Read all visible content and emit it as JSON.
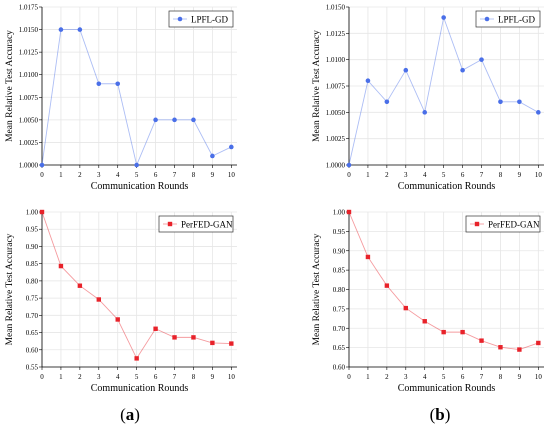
{
  "figure": {
    "captions": [
      "(a)",
      "(b)"
    ]
  },
  "chart_data": [
    {
      "type": "line",
      "marker": "circle",
      "x": [
        0,
        1,
        2,
        3,
        4,
        5,
        6,
        7,
        8,
        9,
        10
      ],
      "series": [
        {
          "name": "LPFL-GD",
          "values": [
            1.0,
            1.015,
            1.015,
            1.009,
            1.009,
            1.0,
            1.005,
            1.005,
            1.005,
            1.001,
            1.002
          ]
        }
      ],
      "xlabel": "Communication Rounds",
      "ylabel": "Mean Relative Test Accuracy",
      "xlim": [
        0,
        10.3
      ],
      "ylim": [
        1.0,
        1.0175
      ],
      "xticks": [
        "0",
        "1",
        "2",
        "3",
        "4",
        "5",
        "6",
        "7",
        "8",
        "9",
        "10"
      ],
      "yticks": [
        "1.0000",
        "1.0025",
        "1.0050",
        "1.0075",
        "1.0100",
        "1.0125",
        "1.0150",
        "1.0175"
      ],
      "grid": true,
      "legend_position": "top-right",
      "color": "#4a6fe8"
    },
    {
      "type": "line",
      "marker": "circle",
      "x": [
        0,
        1,
        2,
        3,
        4,
        5,
        6,
        7,
        8,
        9,
        10
      ],
      "series": [
        {
          "name": "LPFL-GD",
          "values": [
            1.0,
            1.008,
            1.006,
            1.009,
            1.005,
            1.014,
            1.009,
            1.01,
            1.006,
            1.006,
            1.005
          ]
        }
      ],
      "xlabel": "Communication Rounds",
      "ylabel": "Mean Relative Test Accuracy",
      "xlim": [
        0,
        10.3
      ],
      "ylim": [
        1.0,
        1.015
      ],
      "xticks": [
        "0",
        "1",
        "2",
        "3",
        "4",
        "5",
        "6",
        "7",
        "8",
        "9",
        "10"
      ],
      "yticks": [
        "1.0000",
        "1.0025",
        "1.0050",
        "1.0075",
        "1.0100",
        "1.0125",
        "1.0150"
      ],
      "grid": true,
      "legend_position": "top-right",
      "color": "#4a6fe8"
    },
    {
      "type": "line",
      "marker": "square",
      "x": [
        0,
        1,
        2,
        3,
        4,
        5,
        6,
        7,
        8,
        9,
        10
      ],
      "series": [
        {
          "name": "PerFED-GAN",
          "values": [
            1.0,
            0.843,
            0.786,
            0.746,
            0.688,
            0.575,
            0.661,
            0.636,
            0.636,
            0.62,
            0.618
          ]
        }
      ],
      "xlabel": "Communication Rounds",
      "ylabel": "Mean Relative Test Accuracy",
      "xlim": [
        0,
        10.3
      ],
      "ylim": [
        0.55,
        1.0
      ],
      "xticks": [
        "0",
        "1",
        "2",
        "3",
        "4",
        "5",
        "6",
        "7",
        "8",
        "9",
        "10"
      ],
      "yticks": [
        "0.55",
        "0.60",
        "0.65",
        "0.70",
        "0.75",
        "0.80",
        "0.85",
        "0.90",
        "0.95",
        "1.00"
      ],
      "grid": true,
      "legend_position": "top-right",
      "color": "#e8222a"
    },
    {
      "type": "line",
      "marker": "square",
      "x": [
        0,
        1,
        2,
        3,
        4,
        5,
        6,
        7,
        8,
        9,
        10
      ],
      "series": [
        {
          "name": "PerFED-GAN",
          "values": [
            1.0,
            0.884,
            0.81,
            0.752,
            0.718,
            0.69,
            0.69,
            0.668,
            0.651,
            0.645,
            0.662
          ]
        }
      ],
      "xlabel": "Communication Rounds",
      "ylabel": "Mean Relative Test Accuracy",
      "xlim": [
        0,
        10.3
      ],
      "ylim": [
        0.6,
        1.0
      ],
      "xticks": [
        "0",
        "1",
        "2",
        "3",
        "4",
        "5",
        "6",
        "7",
        "8",
        "9",
        "10"
      ],
      "yticks": [
        "0.60",
        "0.65",
        "0.70",
        "0.75",
        "0.80",
        "0.85",
        "0.90",
        "0.95",
        "1.00"
      ],
      "grid": true,
      "legend_position": "top-right",
      "color": "#e8222a"
    }
  ]
}
